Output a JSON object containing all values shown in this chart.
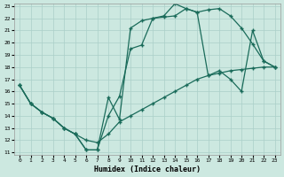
{
  "xlabel": "Humidex (Indice chaleur)",
  "background_color": "#cce8e0",
  "grid_color": "#aacfc8",
  "line_color": "#1a6b5a",
  "xlim": [
    -0.5,
    23.5
  ],
  "ylim": [
    10.8,
    23.2
  ],
  "xticks": [
    0,
    1,
    2,
    3,
    4,
    5,
    6,
    7,
    8,
    9,
    10,
    11,
    12,
    13,
    14,
    15,
    16,
    17,
    18,
    19,
    20,
    21,
    22,
    23
  ],
  "yticks": [
    11,
    12,
    13,
    14,
    15,
    16,
    17,
    18,
    19,
    20,
    21,
    22,
    23
  ],
  "line1_x": [
    0,
    1,
    2,
    3,
    4,
    5,
    6,
    7,
    8,
    9,
    10,
    11,
    12,
    13,
    14,
    15,
    16,
    17,
    18,
    19,
    20,
    21,
    22,
    23
  ],
  "line1_y": [
    16.5,
    15.0,
    14.3,
    13.8,
    13.0,
    12.5,
    11.2,
    11.2,
    15.5,
    13.7,
    21.2,
    21.8,
    22.0,
    22.2,
    23.2,
    22.8,
    22.5,
    22.7,
    22.8,
    22.2,
    21.2,
    19.9,
    18.5,
    18.0
  ],
  "line2_x": [
    0,
    1,
    2,
    3,
    4,
    5,
    6,
    7,
    8,
    9,
    10,
    11,
    12,
    13,
    14,
    15,
    16,
    17,
    18,
    19,
    20,
    21,
    22,
    23
  ],
  "line2_y": [
    16.5,
    15.0,
    14.3,
    13.8,
    13.0,
    12.5,
    11.2,
    11.2,
    14.0,
    15.6,
    19.5,
    19.8,
    22.0,
    22.1,
    22.2,
    22.8,
    22.5,
    17.3,
    17.7,
    17.0,
    16.0,
    21.0,
    18.5,
    18.0
  ],
  "line3_x": [
    0,
    1,
    2,
    3,
    4,
    5,
    6,
    7,
    8,
    9,
    10,
    11,
    12,
    13,
    14,
    15,
    16,
    17,
    18,
    19,
    20,
    21,
    22,
    23
  ],
  "line3_y": [
    16.5,
    15.0,
    14.3,
    13.8,
    13.0,
    12.5,
    12.0,
    11.8,
    12.5,
    13.5,
    14.0,
    14.5,
    15.0,
    15.5,
    16.0,
    16.5,
    17.0,
    17.3,
    17.5,
    17.7,
    17.8,
    17.9,
    18.0,
    18.0
  ]
}
